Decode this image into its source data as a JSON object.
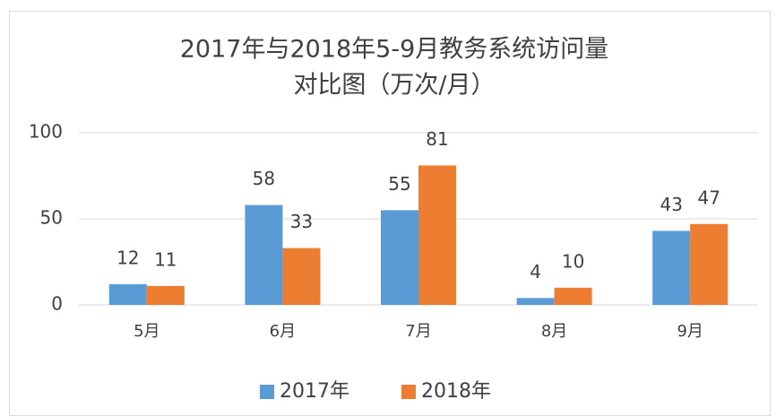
{
  "chart_data": {
    "type": "bar",
    "title": [
      "2017年与2018年5-9月教务系统访问量",
      "对比图（万次/月）"
    ],
    "categories": [
      "5月",
      "6月",
      "7月",
      "8月",
      "9月"
    ],
    "series": [
      {
        "name": "2017年",
        "color": "#5b9bd5",
        "values": [
          12,
          58,
          55,
          4,
          43
        ]
      },
      {
        "name": "2018年",
        "color": "#ed7d31",
        "values": [
          11,
          33,
          81,
          10,
          47
        ]
      }
    ],
    "ylim": [
      0,
      100
    ],
    "yticks": [
      0,
      50,
      100
    ],
    "grid": true,
    "legend": "bottom"
  }
}
